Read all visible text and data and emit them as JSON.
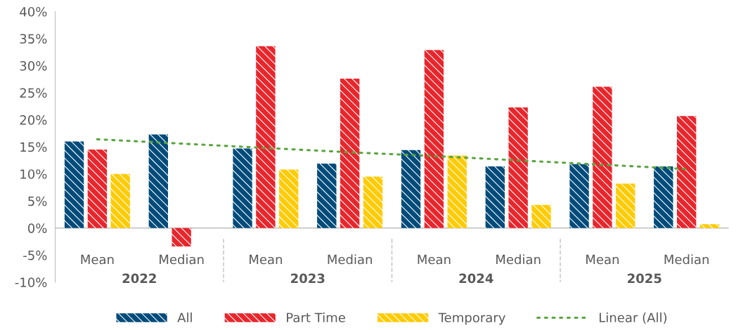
{
  "chart_data": {
    "type": "bar",
    "categories": [
      "Mean",
      "Median",
      "Mean",
      "Median",
      "Mean",
      "Median",
      "Mean",
      "Median"
    ],
    "series": [
      {
        "name": "All",
        "color": "#004b7a",
        "values": [
          16.0,
          17.3,
          14.7,
          11.9,
          14.4,
          11.4,
          11.8,
          11.4
        ]
      },
      {
        "name": "Part Time",
        "color": "#e8262c",
        "values": [
          14.5,
          -3.4,
          33.6,
          27.6,
          32.9,
          22.3,
          26.1,
          20.7
        ]
      },
      {
        "name": "Temporary",
        "color": "#ffcb05",
        "values": [
          10.0,
          null,
          10.8,
          9.5,
          13.4,
          4.3,
          8.2,
          0.7
        ]
      },
      {
        "name": "Linear (All)",
        "type": "line",
        "color": "#5aa540",
        "line_style": "dotted",
        "values": [
          16.4,
          15.6,
          14.8,
          14.0,
          13.3,
          12.5,
          11.7,
          10.9
        ]
      }
    ],
    "annotations": [
      "2022",
      "2023",
      "2024",
      "2025"
    ],
    "ylim": [
      -10,
      40
    ],
    "yticks": [
      {
        "value": -10,
        "label": "-10%"
      },
      {
        "value": -5,
        "label": "-5%"
      },
      {
        "value": 0,
        "label": "0%"
      },
      {
        "value": 5,
        "label": "5%"
      },
      {
        "value": 10,
        "label": "10%"
      },
      {
        "value": 15,
        "label": "15%"
      },
      {
        "value": 20,
        "label": "20%"
      },
      {
        "value": 25,
        "label": "25%"
      },
      {
        "value": 30,
        "label": "30%"
      },
      {
        "value": 35,
        "label": "35%"
      },
      {
        "value": 40,
        "label": "40%"
      }
    ],
    "grid": false,
    "legend": "bottom"
  }
}
